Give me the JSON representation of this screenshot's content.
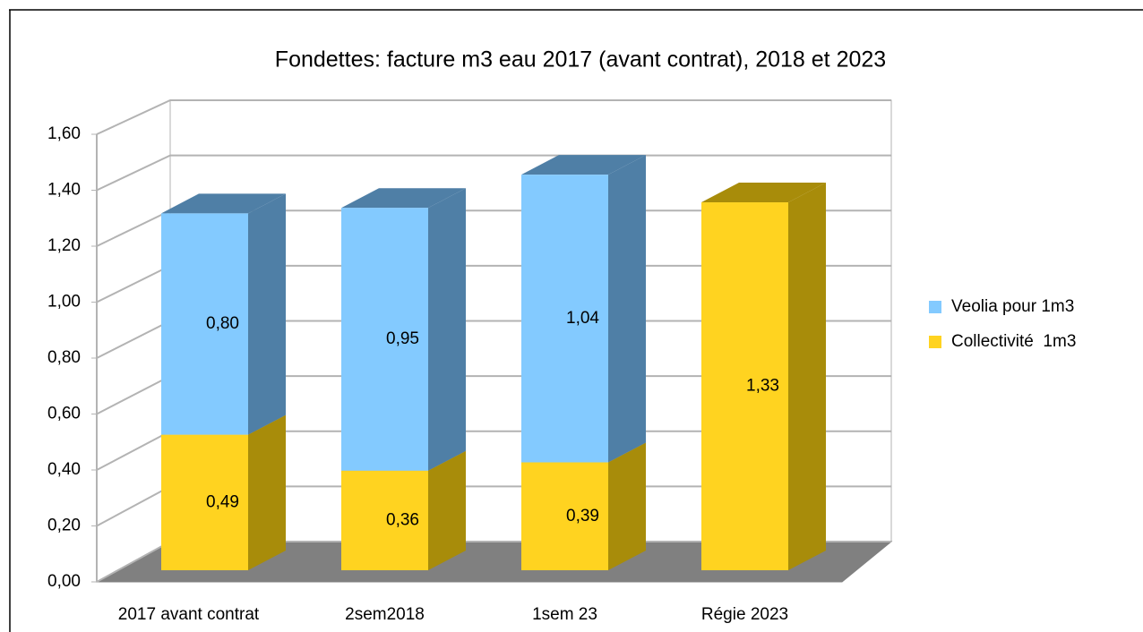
{
  "chart_data": {
    "type": "bar3d-stacked",
    "title": "Fondettes: facture m3 eau 2017 (avant contrat), 2018 et 2023",
    "categories": [
      "2017 avant contrat",
      "2sem2018",
      "1sem 23",
      "Régie 2023"
    ],
    "series": [
      {
        "name": "Collectivité  1m3",
        "color": "#ffd320",
        "side_color": "#a88c0a",
        "values": [
          0.49,
          0.36,
          0.39,
          1.33
        ],
        "value_labels": [
          "0,49",
          "0,36",
          "0,39",
          "1,33"
        ]
      },
      {
        "name": "Veolia pour 1m3",
        "color": "#83caff",
        "side_color": "#4f7fa6",
        "values": [
          0.8,
          0.95,
          1.04,
          null
        ],
        "value_labels": [
          "0,80",
          "0,95",
          "1,04",
          null
        ]
      }
    ],
    "legend_order": [
      1,
      0
    ],
    "ylim": [
      0,
      1.6
    ],
    "yticks": [
      {
        "value": 0,
        "label": "0,00"
      },
      {
        "value": 0.2,
        "label": "0,20"
      },
      {
        "value": 0.4,
        "label": "0,40"
      },
      {
        "value": 0.6,
        "label": "0,60"
      },
      {
        "value": 0.8,
        "label": "0,80"
      },
      {
        "value": 1,
        "label": "1,00"
      },
      {
        "value": 1.2,
        "label": "1,20"
      },
      {
        "value": 1.4,
        "label": "1,40"
      },
      {
        "value": 1.6,
        "label": "1,60"
      }
    ],
    "grid": true,
    "legend": "right"
  }
}
